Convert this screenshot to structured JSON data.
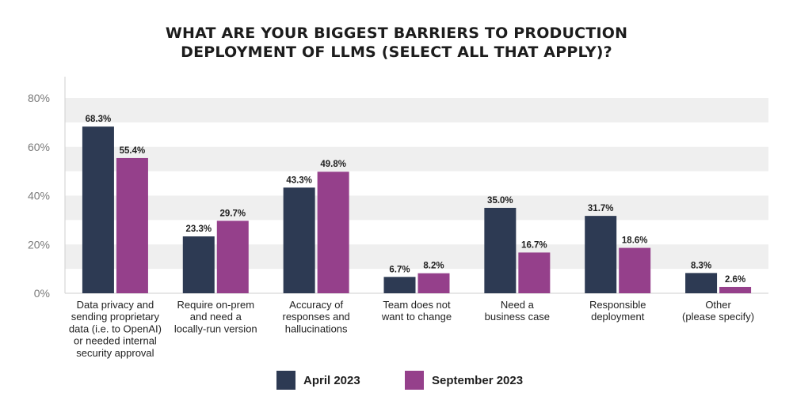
{
  "chart_data": {
    "type": "bar",
    "title_lines": [
      "WHAT ARE YOUR BIGGEST BARRIERS TO PRODUCTION",
      "DEPLOYMENT OF LLMS (SELECT ALL THAT APPLY)?"
    ],
    "categories": [
      [
        "Data privacy and",
        "sending proprietary",
        "data (i.e. to OpenAI)",
        "or needed internal",
        "security approval"
      ],
      [
        "Require on-prem",
        "and need a",
        "locally-run version"
      ],
      [
        "Accuracy of",
        "responses and",
        "hallucinations"
      ],
      [
        "Team does not",
        "want to change"
      ],
      [
        "Need a",
        "business case"
      ],
      [
        "Responsible",
        "deployment"
      ],
      [
        "Other",
        "(please specify)"
      ]
    ],
    "series": [
      {
        "name": "April 2023",
        "color": "#2d3a53",
        "values": [
          68.3,
          23.3,
          43.3,
          6.7,
          35.0,
          31.7,
          8.3
        ],
        "labels": [
          "68.3%",
          "23.3%",
          "43.3%",
          "6.7%",
          "35.0%",
          "31.7%",
          "8.3%"
        ]
      },
      {
        "name": "September 2023",
        "color": "#95408b",
        "values": [
          55.4,
          29.7,
          49.8,
          8.2,
          16.7,
          18.6,
          2.6
        ],
        "labels": [
          "55.4%",
          "29.7%",
          "49.8%",
          "8.2%",
          "16.7%",
          "18.6%",
          "2.6%"
        ]
      }
    ],
    "y_ticks": [
      0,
      20,
      40,
      60,
      80
    ],
    "y_tick_labels": [
      "0%",
      "20%",
      "40%",
      "60%",
      "80%"
    ],
    "ylim": [
      0,
      80
    ],
    "grid": "alternating horizontal bands",
    "legend_position": "bottom-center"
  }
}
